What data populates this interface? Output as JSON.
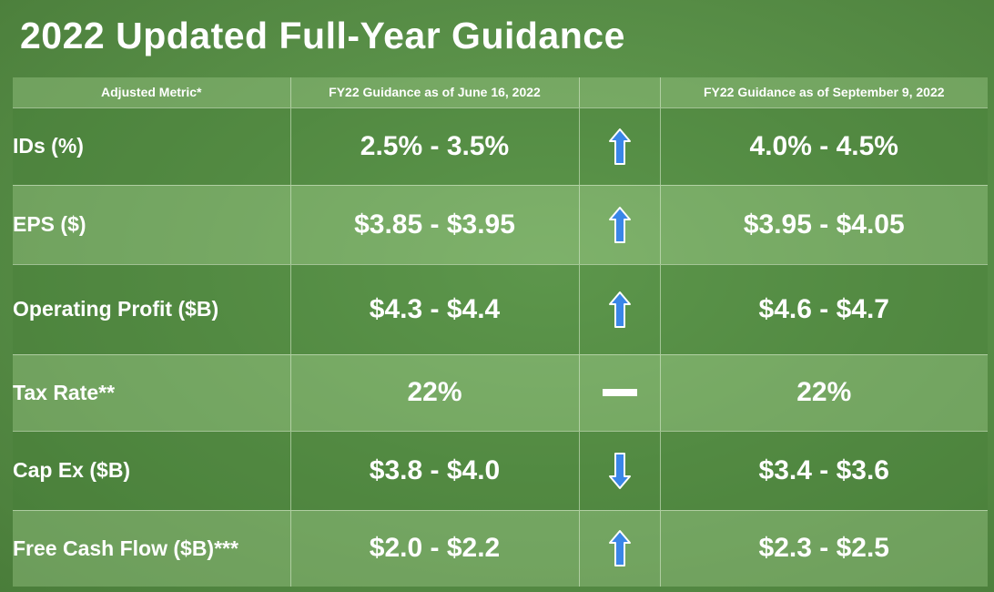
{
  "title": "2022 Updated Full-Year Guidance",
  "columns": [
    "Adjusted Metric*",
    "FY22 Guidance as of June 16, 2022",
    "",
    "FY22 Guidance as of September 9, 2022"
  ],
  "rows": [
    {
      "metric": "IDs (%)",
      "june": "2.5% - 3.5%",
      "change": "up-arrow-icon",
      "september": "4.0% - 4.5%"
    },
    {
      "metric": "EPS ($)",
      "june": "$3.85 - $3.95",
      "change": "up-arrow-icon",
      "september": "$3.95 - $4.05"
    },
    {
      "metric": "Operating Profit ($B)",
      "june": "$4.3 - $4.4",
      "change": "up-arrow-icon",
      "september": "$4.6 - $4.7"
    },
    {
      "metric": "Tax Rate**",
      "june": "22%",
      "change": "dash-icon",
      "september": "22%"
    },
    {
      "metric": "Cap Ex ($B)",
      "june": "$3.8 - $4.0",
      "change": "down-arrow-icon",
      "september": "$3.4 - $3.6"
    },
    {
      "metric": "Free Cash Flow ($B)***",
      "june": "$2.0 - $2.2",
      "change": "up-arrow-icon",
      "september": "$2.3 - $2.5"
    }
  ],
  "colors": {
    "arrow": "#3a86e8",
    "arrow_outline": "#ffffff",
    "background": "#5a9149"
  }
}
